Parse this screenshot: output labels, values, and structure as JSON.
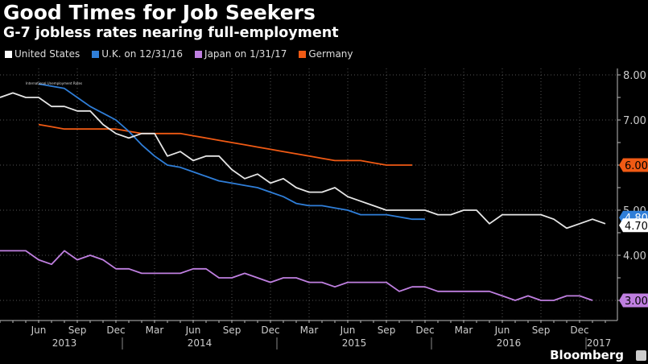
{
  "header": {
    "title": "Good Times for Job Seekers",
    "subtitle": "G-7 jobless rates nearing full-employment"
  },
  "brand": {
    "label": "Bloomberg",
    "icon": "bloomberg-chart-icon"
  },
  "chart_data": {
    "type": "line",
    "title": "Good Times for Job Seekers",
    "subtitle": "G-7 jobless rates nearing full-employment",
    "annotation": "International Unemployment Rates",
    "xlabel": "",
    "ylabel": "",
    "ylim": [
      2.6,
      8.3
    ],
    "y_ticks": [
      "8.00",
      "7.00",
      "6.00",
      "5.00",
      "4.00",
      "3.00"
    ],
    "y_tick_values": [
      8,
      7,
      6,
      5,
      4,
      3
    ],
    "x_start": "2013-03",
    "x_month_labels": [
      {
        "label": "Jun",
        "month_index": 3
      },
      {
        "label": "Sep",
        "month_index": 6
      },
      {
        "label": "Dec",
        "month_index": 9
      },
      {
        "label": "Mar",
        "month_index": 12
      },
      {
        "label": "Jun",
        "month_index": 15
      },
      {
        "label": "Sep",
        "month_index": 18
      },
      {
        "label": "Dec",
        "month_index": 21
      },
      {
        "label": "Mar",
        "month_index": 24
      },
      {
        "label": "Jun",
        "month_index": 27
      },
      {
        "label": "Sep",
        "month_index": 30
      },
      {
        "label": "Dec",
        "month_index": 33
      },
      {
        "label": "Mar",
        "month_index": 36
      },
      {
        "label": "Jun",
        "month_index": 39
      },
      {
        "label": "Sep",
        "month_index": 42
      },
      {
        "label": "Dec",
        "month_index": 45
      }
    ],
    "x_year_labels": [
      {
        "label": "2013",
        "month_index": 5
      },
      {
        "label": "2014",
        "month_index": 15.5
      },
      {
        "label": "2015",
        "month_index": 27.5
      },
      {
        "label": "2016",
        "month_index": 39.5
      },
      {
        "label": "2017",
        "month_index": 46.5
      }
    ],
    "year_dividers": [
      9.5,
      21.5,
      33.5,
      45.5
    ],
    "grid": true,
    "legend_position": "top-left",
    "series": [
      {
        "name": "United States",
        "color": "#e6e6e6",
        "start_index": 0,
        "end_label": "4.70",
        "values": [
          7.5,
          7.6,
          7.5,
          7.5,
          7.3,
          7.3,
          7.2,
          7.2,
          6.9,
          6.7,
          6.6,
          6.7,
          6.7,
          6.2,
          6.3,
          6.1,
          6.2,
          6.2,
          5.9,
          5.7,
          5.8,
          5.6,
          5.7,
          5.5,
          5.4,
          5.4,
          5.5,
          5.3,
          5.2,
          5.1,
          5.0,
          5.0,
          5.0,
          5.0,
          4.9,
          4.9,
          5.0,
          5.0,
          4.7,
          4.9,
          4.9,
          4.9,
          4.9,
          4.8,
          4.6,
          4.7,
          4.8,
          4.7
        ]
      },
      {
        "name": "U.K. on 12/31/16",
        "color": "#2f7ed8",
        "start_index": 3,
        "end_label": "4.80",
        "values": [
          7.8,
          7.75,
          7.7,
          7.5,
          7.3,
          7.15,
          7.0,
          6.75,
          6.45,
          6.2,
          6.0,
          5.95,
          5.85,
          5.75,
          5.65,
          5.6,
          5.55,
          5.5,
          5.4,
          5.3,
          5.15,
          5.1,
          5.1,
          5.05,
          5.0,
          4.9,
          4.9,
          4.9,
          4.85,
          4.8,
          4.8
        ]
      },
      {
        "name": "Japan on 1/31/17",
        "color": "#bf7fe0",
        "start_index": 0,
        "end_label": "3.00",
        "values": [
          4.1,
          4.1,
          4.1,
          3.9,
          3.8,
          4.1,
          3.9,
          4.0,
          3.9,
          3.7,
          3.7,
          3.6,
          3.6,
          3.6,
          3.6,
          3.7,
          3.7,
          3.5,
          3.5,
          3.6,
          3.5,
          3.4,
          3.5,
          3.5,
          3.4,
          3.4,
          3.3,
          3.4,
          3.4,
          3.4,
          3.4,
          3.2,
          3.3,
          3.3,
          3.2,
          3.2,
          3.2,
          3.2,
          3.2,
          3.1,
          3.0,
          3.1,
          3.0,
          3.0,
          3.1,
          3.1,
          3.0
        ]
      },
      {
        "name": "Germany",
        "color": "#f05a14",
        "start_index": 3,
        "end_label": "6.00",
        "values": [
          6.9,
          6.85,
          6.8,
          6.8,
          6.8,
          6.8,
          6.8,
          6.75,
          6.7,
          6.7,
          6.7,
          6.7,
          6.65,
          6.6,
          6.55,
          6.5,
          6.45,
          6.4,
          6.35,
          6.3,
          6.25,
          6.2,
          6.15,
          6.1,
          6.1,
          6.1,
          6.05,
          6.0,
          6.0,
          6.0
        ]
      }
    ]
  }
}
